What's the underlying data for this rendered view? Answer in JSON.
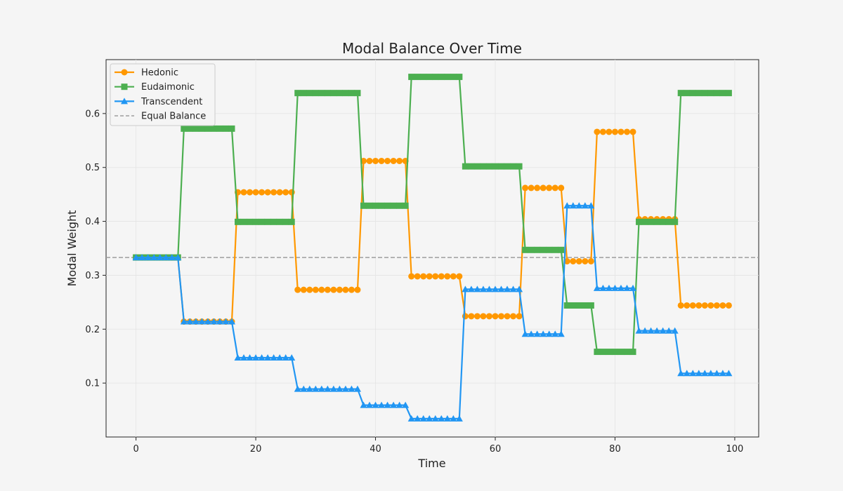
{
  "chart_data": {
    "type": "line",
    "title": "Modal Balance Over Time",
    "xlabel": "Time",
    "ylabel": "Modal Weight",
    "xlim": [
      -5,
      104
    ],
    "ylim": [
      0.0,
      0.7
    ],
    "xticks": [
      0,
      20,
      40,
      60,
      80,
      100
    ],
    "yticks": [
      0.1,
      0.2,
      0.3,
      0.4,
      0.5,
      0.6
    ],
    "grid": true,
    "legend_position": "top-left",
    "segments": [
      {
        "start": 0,
        "end": 7,
        "values": [
          0.333,
          0.333,
          0.333
        ]
      },
      {
        "start": 8,
        "end": 16,
        "values": [
          0.214,
          0.572,
          0.214
        ]
      },
      {
        "start": 17,
        "end": 26,
        "values": [
          0.454,
          0.399,
          0.147
        ]
      },
      {
        "start": 27,
        "end": 37,
        "values": [
          0.273,
          0.638,
          0.089
        ]
      },
      {
        "start": 38,
        "end": 45,
        "values": [
          0.512,
          0.429,
          0.059
        ]
      },
      {
        "start": 46,
        "end": 54,
        "values": [
          0.298,
          0.668,
          0.034
        ]
      },
      {
        "start": 55,
        "end": 64,
        "values": [
          0.224,
          0.502,
          0.274
        ]
      },
      {
        "start": 65,
        "end": 71,
        "values": [
          0.462,
          0.347,
          0.191
        ]
      },
      {
        "start": 72,
        "end": 76,
        "values": [
          0.326,
          0.244,
          0.429
        ]
      },
      {
        "start": 77,
        "end": 83,
        "values": [
          0.566,
          0.158,
          0.276
        ]
      },
      {
        "start": 84,
        "end": 90,
        "values": [
          0.404,
          0.399,
          0.197
        ]
      },
      {
        "start": 91,
        "end": 99,
        "values": [
          0.244,
          0.638,
          0.118
        ]
      }
    ],
    "series": [
      {
        "name": "Hedonic",
        "color": "#ff9800",
        "marker": "circle"
      },
      {
        "name": "Eudaimonic",
        "color": "#4caf50",
        "marker": "square"
      },
      {
        "name": "Transcendent",
        "color": "#2196f3",
        "marker": "triangle"
      }
    ],
    "reference_line": {
      "name": "Equal Balance",
      "value": 0.333,
      "color": "#9e9e9e",
      "style": "dashed"
    }
  }
}
